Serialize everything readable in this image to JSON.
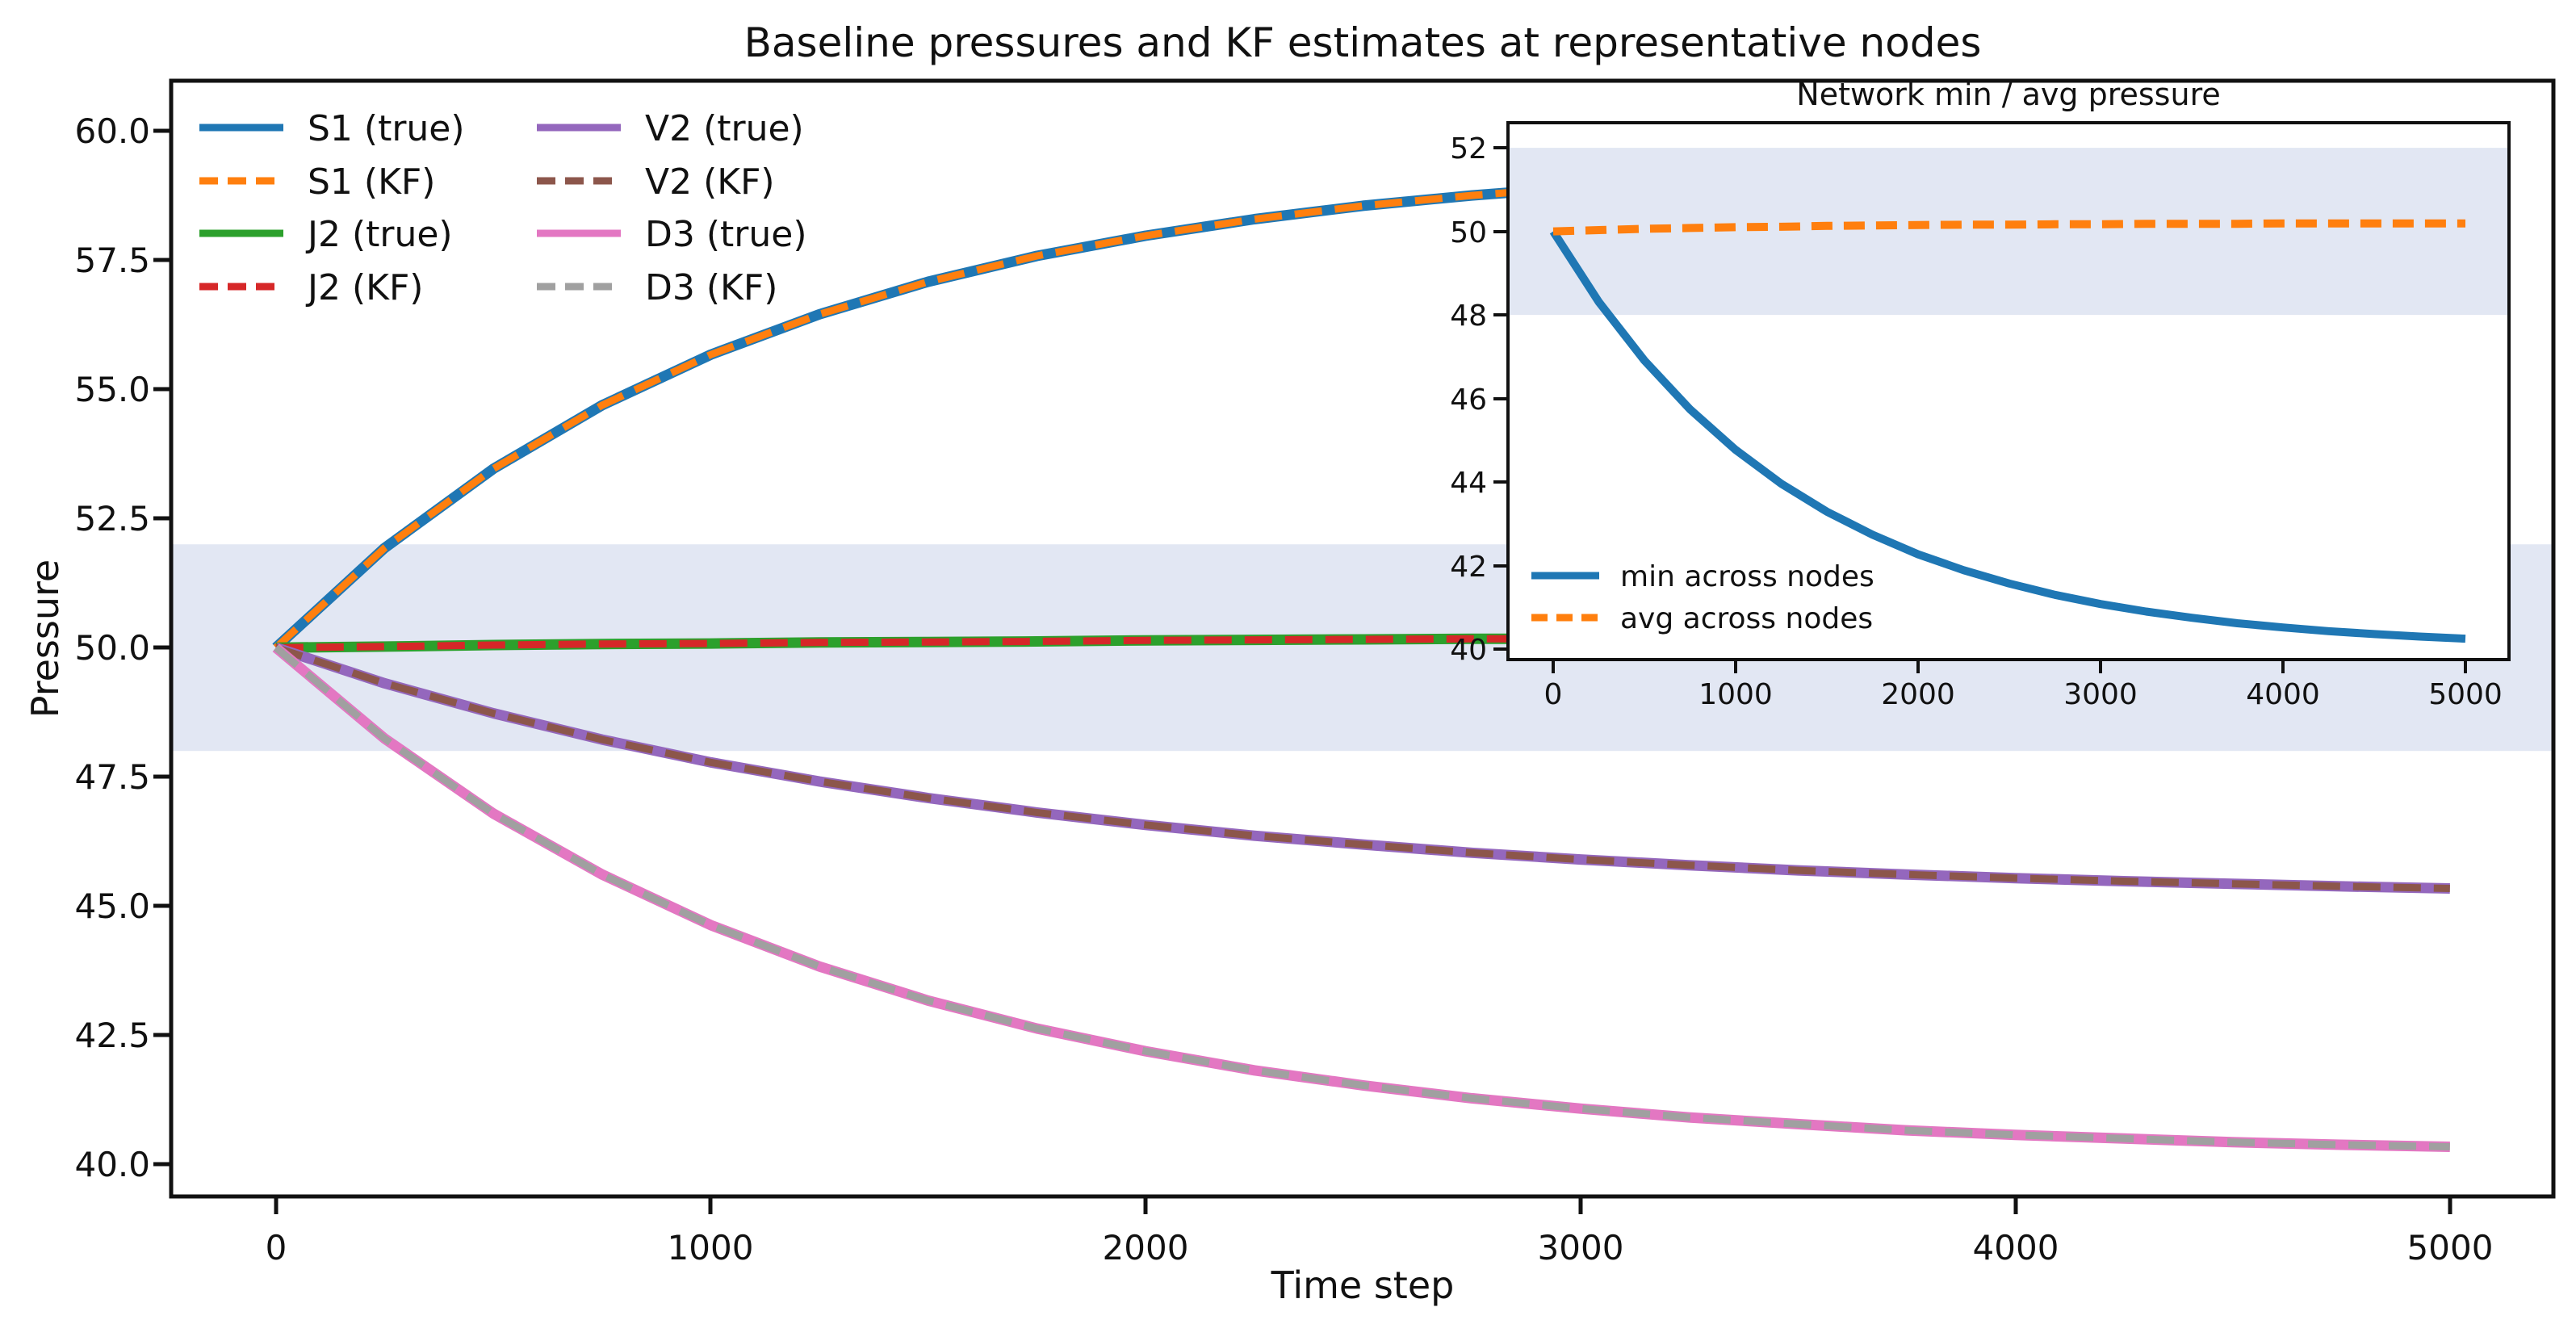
{
  "style": {
    "text_color": "#111111",
    "spine_color": "#111111",
    "background": "#ffffff",
    "band_color": "#e2e7f3"
  },
  "chart_data": [
    {
      "type": "line",
      "title": "Baseline pressures and KF estimates at representative nodes",
      "xlabel": "Time step",
      "ylabel": "Pressure",
      "xlim": [
        -241,
        5238
      ],
      "ylim": [
        39.38,
        60.97
      ],
      "grid": false,
      "legend_position": "upper left",
      "band": {
        "ymin": 48,
        "ymax": 52,
        "color": "#e2e7f3"
      },
      "xtick_labels": [
        "0",
        "1000",
        "2000",
        "3000",
        "4000",
        "5000"
      ],
      "xtick_values": [
        0,
        1000,
        2000,
        3000,
        4000,
        5000
      ],
      "ytick_labels": [
        "60.0",
        "57.5",
        "55.0",
        "52.5",
        "50.0",
        "47.5",
        "45.0",
        "42.5",
        "40.0"
      ],
      "ytick_values": [
        60.0,
        57.5,
        55.0,
        52.5,
        50.0,
        47.5,
        45.0,
        42.5,
        40.0
      ],
      "x": [
        0,
        250,
        500,
        750,
        1000,
        1250,
        1500,
        1750,
        2000,
        2250,
        2500,
        2750,
        3000,
        3250,
        3500,
        3750,
        4000,
        4250,
        4500,
        4750,
        5000
      ],
      "series": [
        {
          "name": "S1 (true)",
          "color": "#1f77b4",
          "style": "solid",
          "values": [
            50.0,
            51.93,
            53.46,
            54.69,
            55.67,
            56.45,
            57.08,
            57.58,
            57.97,
            58.29,
            58.55,
            58.75,
            58.91,
            59.04,
            59.14,
            59.22,
            59.29,
            59.34,
            59.38,
            59.42,
            59.44
          ]
        },
        {
          "name": "S1 (KF)",
          "color": "#ff7f0e",
          "style": "dashed",
          "values": [
            50.0,
            51.93,
            53.46,
            54.69,
            55.67,
            56.45,
            57.08,
            57.58,
            57.97,
            58.29,
            58.55,
            58.75,
            58.91,
            59.04,
            59.14,
            59.22,
            59.29,
            59.34,
            59.38,
            59.42,
            59.44
          ]
        },
        {
          "name": "J2 (true)",
          "color": "#2ca02c",
          "style": "solid",
          "values": [
            50.0,
            50.02,
            50.05,
            50.07,
            50.08,
            50.1,
            50.11,
            50.12,
            50.14,
            50.15,
            50.16,
            50.17,
            50.17,
            50.18,
            50.19,
            50.19,
            50.2,
            50.2,
            50.21,
            50.21,
            50.22
          ]
        },
        {
          "name": "J2 (KF)",
          "color": "#d62728",
          "style": "dashed",
          "values": [
            50.0,
            50.02,
            50.05,
            50.07,
            50.08,
            50.1,
            50.11,
            50.12,
            50.14,
            50.15,
            50.16,
            50.17,
            50.17,
            50.18,
            50.19,
            50.19,
            50.2,
            50.2,
            50.21,
            50.21,
            50.22
          ]
        },
        {
          "name": "V2 (true)",
          "color": "#9467bd",
          "style": "solid",
          "values": [
            50.0,
            49.31,
            48.73,
            48.22,
            47.78,
            47.41,
            47.09,
            46.81,
            46.57,
            46.36,
            46.19,
            46.03,
            45.9,
            45.79,
            45.69,
            45.61,
            45.54,
            45.48,
            45.43,
            45.38,
            45.34
          ]
        },
        {
          "name": "V2 (KF)",
          "color": "#8c564b",
          "style": "dashed",
          "values": [
            50.0,
            49.31,
            48.73,
            48.22,
            47.78,
            47.41,
            47.09,
            46.81,
            46.57,
            46.36,
            46.19,
            46.03,
            45.9,
            45.79,
            45.69,
            45.61,
            45.54,
            45.48,
            45.43,
            45.38,
            45.34
          ]
        },
        {
          "name": "D3 (true)",
          "color": "#e377c2",
          "style": "solid",
          "values": [
            50.0,
            48.24,
            46.79,
            45.61,
            44.63,
            43.83,
            43.17,
            42.63,
            42.19,
            41.82,
            41.53,
            41.28,
            41.08,
            40.91,
            40.78,
            40.66,
            40.57,
            40.5,
            40.43,
            40.38,
            40.34
          ]
        },
        {
          "name": "D3 (KF)",
          "color": "#a0a0a0",
          "style": "dashed",
          "values": [
            50.0,
            48.24,
            46.79,
            45.61,
            44.63,
            43.83,
            43.17,
            42.63,
            42.19,
            41.82,
            41.53,
            41.28,
            41.08,
            40.91,
            40.78,
            40.66,
            40.57,
            40.5,
            40.43,
            40.38,
            40.34
          ]
        }
      ]
    },
    {
      "type": "line",
      "title": "Network min / avg pressure",
      "xlabel": "",
      "ylabel": "",
      "xlim": [
        -248,
        5239
      ],
      "ylim": [
        39.75,
        52.6
      ],
      "grid": false,
      "legend_position": "lower left",
      "band": {
        "ymin": 48,
        "ymax": 52,
        "color": "#e2e7f3"
      },
      "xtick_labels": [
        "0",
        "1000",
        "2000",
        "3000",
        "4000",
        "5000"
      ],
      "xtick_values": [
        0,
        1000,
        2000,
        3000,
        4000,
        5000
      ],
      "ytick_labels": [
        "52",
        "50",
        "48",
        "46",
        "44",
        "42",
        "40"
      ],
      "ytick_values": [
        52,
        50,
        48,
        46,
        44,
        42,
        40
      ],
      "x": [
        0,
        250,
        500,
        750,
        1000,
        1250,
        1500,
        1750,
        2000,
        2250,
        2500,
        2750,
        3000,
        3250,
        3500,
        3750,
        4000,
        4250,
        4500,
        4750,
        5000
      ],
      "series": [
        {
          "name": "min across nodes",
          "color": "#1f77b4",
          "style": "solid",
          "values": [
            50.0,
            48.31,
            46.91,
            45.74,
            44.77,
            43.96,
            43.29,
            42.74,
            42.27,
            41.89,
            41.57,
            41.3,
            41.08,
            40.9,
            40.75,
            40.62,
            40.52,
            40.43,
            40.36,
            40.3,
            40.25
          ]
        },
        {
          "name": "avg across nodes",
          "color": "#ff7f0e",
          "style": "dashed",
          "values": [
            50.0,
            50.03,
            50.06,
            50.08,
            50.1,
            50.11,
            50.13,
            50.14,
            50.15,
            50.16,
            50.16,
            50.17,
            50.17,
            50.18,
            50.18,
            50.18,
            50.19,
            50.19,
            50.19,
            50.19,
            50.19
          ]
        }
      ]
    }
  ]
}
